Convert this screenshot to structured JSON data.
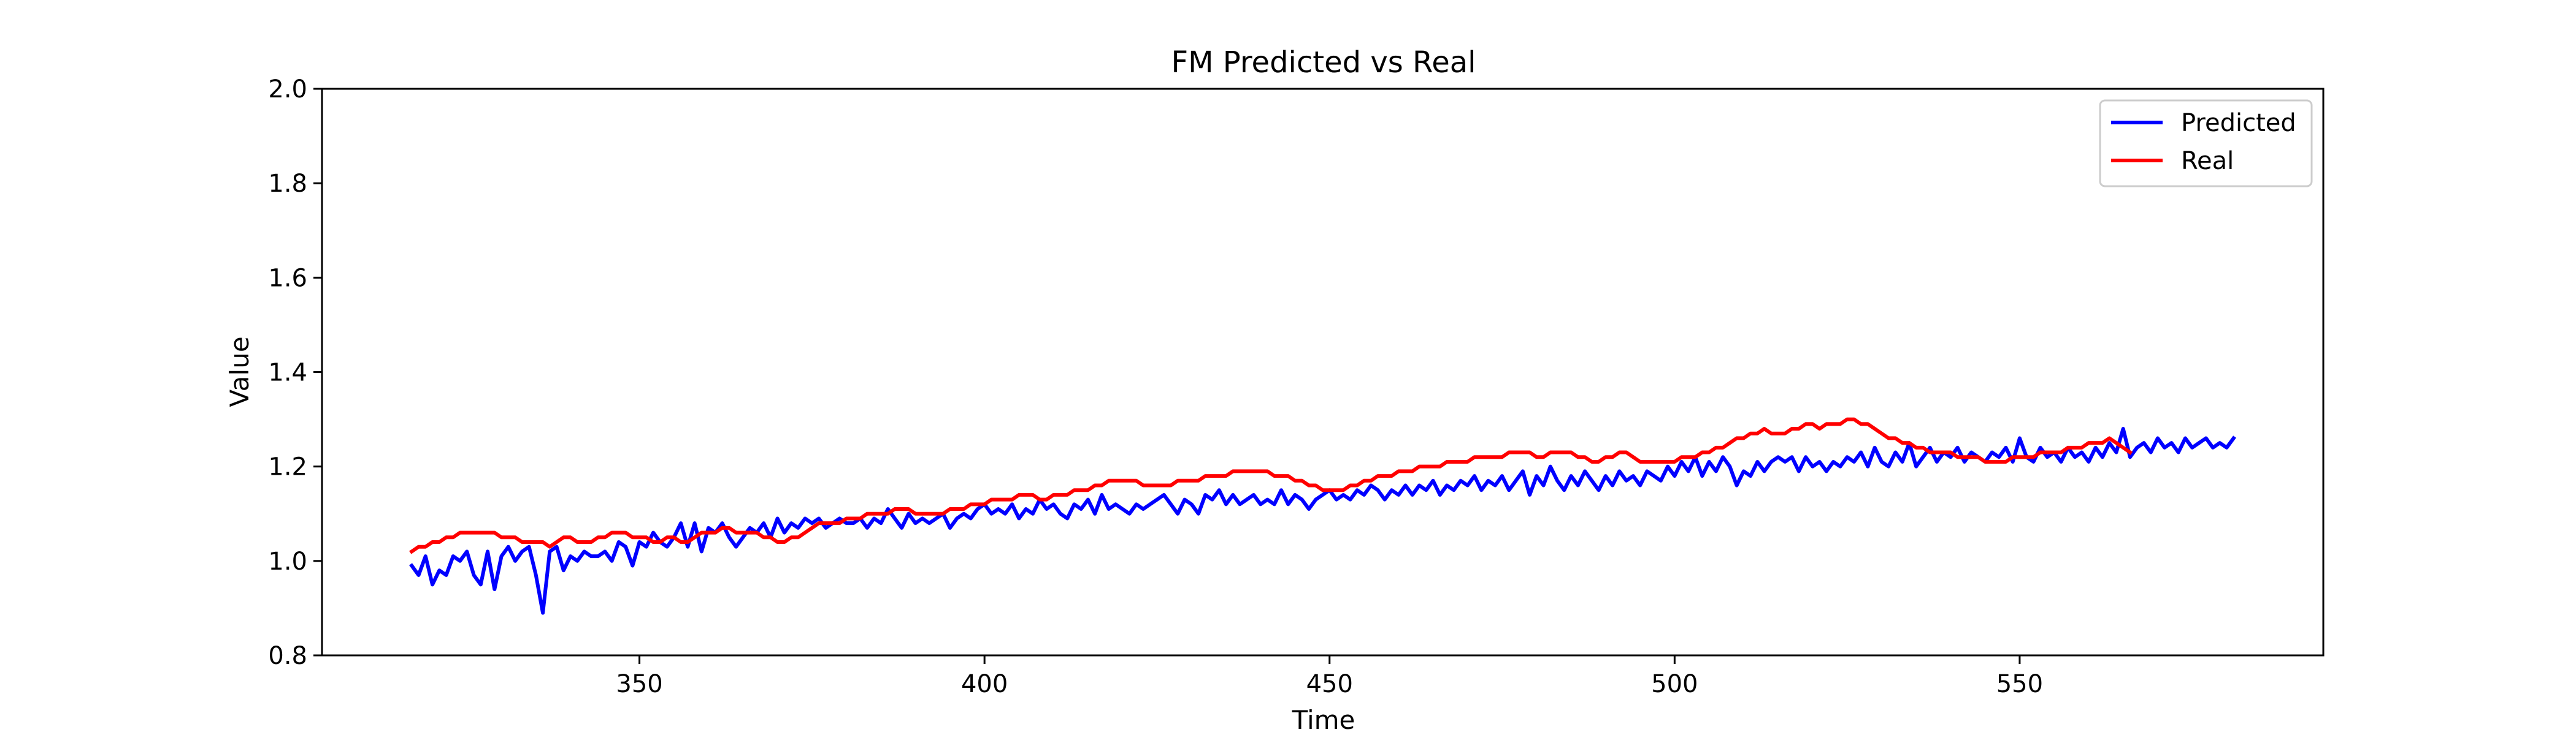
{
  "chart_data": {
    "type": "line",
    "title": "FM Predicted vs Real",
    "xlabel": "Time",
    "ylabel": "Value",
    "xlim": [
      304,
      594
    ],
    "ylim": [
      0.8,
      2.0
    ],
    "xticks": [
      350,
      400,
      450,
      500,
      550
    ],
    "yticks": [
      0.8,
      1.0,
      1.2,
      1.4,
      1.6,
      1.8,
      2.0
    ],
    "grid": false,
    "legend": "top-right",
    "series": [
      {
        "name": "Predicted",
        "color": "#0000ff",
        "x_start": 317,
        "x_step": 1,
        "values": [
          0.99,
          0.97,
          1.01,
          0.95,
          0.98,
          0.97,
          1.01,
          1.0,
          1.02,
          0.97,
          0.95,
          1.02,
          0.94,
          1.01,
          1.03,
          1.0,
          1.02,
          1.03,
          0.97,
          0.89,
          1.02,
          1.03,
          0.98,
          1.01,
          1.0,
          1.02,
          1.01,
          1.01,
          1.02,
          1.0,
          1.04,
          1.03,
          0.99,
          1.04,
          1.03,
          1.06,
          1.04,
          1.03,
          1.05,
          1.08,
          1.03,
          1.08,
          1.02,
          1.07,
          1.06,
          1.08,
          1.05,
          1.03,
          1.05,
          1.07,
          1.06,
          1.08,
          1.05,
          1.09,
          1.06,
          1.08,
          1.07,
          1.09,
          1.08,
          1.09,
          1.07,
          1.08,
          1.09,
          1.08,
          1.08,
          1.09,
          1.07,
          1.09,
          1.08,
          1.11,
          1.09,
          1.07,
          1.1,
          1.08,
          1.09,
          1.08,
          1.09,
          1.1,
          1.07,
          1.09,
          1.1,
          1.09,
          1.11,
          1.12,
          1.1,
          1.11,
          1.1,
          1.12,
          1.09,
          1.11,
          1.1,
          1.13,
          1.11,
          1.12,
          1.1,
          1.09,
          1.12,
          1.11,
          1.13,
          1.1,
          1.14,
          1.11,
          1.12,
          1.11,
          1.1,
          1.12,
          1.11,
          1.12,
          1.13,
          1.14,
          1.12,
          1.1,
          1.13,
          1.12,
          1.1,
          1.14,
          1.13,
          1.15,
          1.12,
          1.14,
          1.12,
          1.13,
          1.14,
          1.12,
          1.13,
          1.12,
          1.15,
          1.12,
          1.14,
          1.13,
          1.11,
          1.13,
          1.14,
          1.15,
          1.13,
          1.14,
          1.13,
          1.15,
          1.14,
          1.16,
          1.15,
          1.13,
          1.15,
          1.14,
          1.16,
          1.14,
          1.16,
          1.15,
          1.17,
          1.14,
          1.16,
          1.15,
          1.17,
          1.16,
          1.18,
          1.15,
          1.17,
          1.16,
          1.18,
          1.15,
          1.17,
          1.19,
          1.14,
          1.18,
          1.16,
          1.2,
          1.17,
          1.15,
          1.18,
          1.16,
          1.19,
          1.17,
          1.15,
          1.18,
          1.16,
          1.19,
          1.17,
          1.18,
          1.16,
          1.19,
          1.18,
          1.17,
          1.2,
          1.18,
          1.21,
          1.19,
          1.22,
          1.18,
          1.21,
          1.19,
          1.22,
          1.2,
          1.16,
          1.19,
          1.18,
          1.21,
          1.19,
          1.21,
          1.22,
          1.21,
          1.22,
          1.19,
          1.22,
          1.2,
          1.21,
          1.19,
          1.21,
          1.2,
          1.22,
          1.21,
          1.23,
          1.2,
          1.24,
          1.21,
          1.2,
          1.23,
          1.21,
          1.25,
          1.2,
          1.22,
          1.24,
          1.21,
          1.23,
          1.22,
          1.24,
          1.21,
          1.23,
          1.22,
          1.21,
          1.23,
          1.22,
          1.24,
          1.21,
          1.26,
          1.22,
          1.21,
          1.24,
          1.22,
          1.23,
          1.21,
          1.24,
          1.22,
          1.23,
          1.21,
          1.24,
          1.22,
          1.25,
          1.23,
          1.28,
          1.22,
          1.24,
          1.25,
          1.23,
          1.26,
          1.24,
          1.25,
          1.23,
          1.26,
          1.24,
          1.25,
          1.26,
          1.24,
          1.25,
          1.24,
          1.26
        ]
      },
      {
        "name": "Real",
        "color": "#ff0000",
        "x_start": 317,
        "x_step": 1,
        "values": [
          1.02,
          1.03,
          1.03,
          1.04,
          1.04,
          1.05,
          1.05,
          1.06,
          1.06,
          1.06,
          1.06,
          1.06,
          1.06,
          1.05,
          1.05,
          1.05,
          1.04,
          1.04,
          1.04,
          1.04,
          1.03,
          1.04,
          1.05,
          1.05,
          1.04,
          1.04,
          1.04,
          1.05,
          1.05,
          1.06,
          1.06,
          1.06,
          1.05,
          1.05,
          1.05,
          1.04,
          1.04,
          1.05,
          1.05,
          1.04,
          1.04,
          1.05,
          1.06,
          1.06,
          1.06,
          1.07,
          1.07,
          1.06,
          1.06,
          1.06,
          1.06,
          1.05,
          1.05,
          1.04,
          1.04,
          1.05,
          1.05,
          1.06,
          1.07,
          1.08,
          1.08,
          1.08,
          1.08,
          1.09,
          1.09,
          1.09,
          1.1,
          1.1,
          1.1,
          1.1,
          1.11,
          1.11,
          1.11,
          1.1,
          1.1,
          1.1,
          1.1,
          1.1,
          1.11,
          1.11,
          1.11,
          1.12,
          1.12,
          1.12,
          1.13,
          1.13,
          1.13,
          1.13,
          1.14,
          1.14,
          1.14,
          1.13,
          1.13,
          1.14,
          1.14,
          1.14,
          1.15,
          1.15,
          1.15,
          1.16,
          1.16,
          1.17,
          1.17,
          1.17,
          1.17,
          1.17,
          1.16,
          1.16,
          1.16,
          1.16,
          1.16,
          1.17,
          1.17,
          1.17,
          1.17,
          1.18,
          1.18,
          1.18,
          1.18,
          1.19,
          1.19,
          1.19,
          1.19,
          1.19,
          1.19,
          1.18,
          1.18,
          1.18,
          1.17,
          1.17,
          1.16,
          1.16,
          1.15,
          1.15,
          1.15,
          1.15,
          1.16,
          1.16,
          1.17,
          1.17,
          1.18,
          1.18,
          1.18,
          1.19,
          1.19,
          1.19,
          1.2,
          1.2,
          1.2,
          1.2,
          1.21,
          1.21,
          1.21,
          1.21,
          1.22,
          1.22,
          1.22,
          1.22,
          1.22,
          1.23,
          1.23,
          1.23,
          1.23,
          1.22,
          1.22,
          1.23,
          1.23,
          1.23,
          1.23,
          1.22,
          1.22,
          1.21,
          1.21,
          1.22,
          1.22,
          1.23,
          1.23,
          1.22,
          1.21,
          1.21,
          1.21,
          1.21,
          1.21,
          1.21,
          1.22,
          1.22,
          1.22,
          1.23,
          1.23,
          1.24,
          1.24,
          1.25,
          1.26,
          1.26,
          1.27,
          1.27,
          1.28,
          1.27,
          1.27,
          1.27,
          1.28,
          1.28,
          1.29,
          1.29,
          1.28,
          1.29,
          1.29,
          1.29,
          1.3,
          1.3,
          1.29,
          1.29,
          1.28,
          1.27,
          1.26,
          1.26,
          1.25,
          1.25,
          1.24,
          1.24,
          1.23,
          1.23,
          1.23,
          1.23,
          1.22,
          1.22,
          1.22,
          1.22,
          1.21,
          1.21,
          1.21,
          1.21,
          1.22,
          1.22,
          1.22,
          1.22,
          1.23,
          1.23,
          1.23,
          1.23,
          1.24,
          1.24,
          1.24,
          1.25,
          1.25,
          1.25,
          1.26,
          1.25,
          1.24,
          1.23
        ]
      }
    ]
  }
}
